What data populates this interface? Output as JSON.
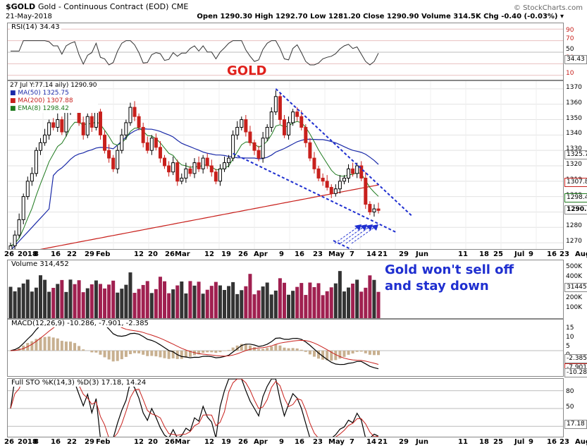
{
  "header": {
    "symbol": "$GOLD",
    "name": "Gold - Continuous Contract (EOD)",
    "exchange": "CME",
    "date": "21-May-2018",
    "copyright": "© StockCharts.com",
    "ohlc": "Open 1290.30  High 1292.70  Low 1281.20  Close 1290.90  Volume 314.5K  Chg -0.40 (-0.03%) ▾"
  },
  "title": "GOLD",
  "annotation": [
    "Gold won't sell off",
    "and stay down"
  ],
  "panels": {
    "rsi": {
      "label": "RSI(14) 34.43",
      "levels": [
        "90",
        "70",
        "50",
        "30",
        "10"
      ],
      "current": "34.43"
    },
    "price": {
      "legend": [
        "27 Jul Y:77.14   aily) 1290.90",
        "MA(50) 1325.75",
        "MA(200) 1307.88",
        "EMA(8) 1298.42"
      ],
      "legend_colors": [
        "#000000",
        "#1a2aa8",
        "#c8201c",
        "#1e7a1e"
      ],
      "ticks": [
        "1370",
        "1360",
        "1350",
        "1340",
        "1330",
        "1320",
        "1310",
        "1300",
        "1290",
        "1280",
        "1270"
      ],
      "tags": [
        "1325.7",
        "1307.8",
        "1298.4",
        "1290.9"
      ]
    },
    "volume": {
      "label": "Volume 314,452",
      "ticks": [
        "500K",
        "400K",
        "300K",
        "200K",
        "100K"
      ],
      "tag": "314452"
    },
    "macd": {
      "label": "MACD(12,26,9) -10.286, -7.901, -2.385",
      "ticks": [
        "15",
        "10",
        "5",
        "0",
        "-5",
        "-10"
      ],
      "tags": [
        "-2.385",
        "-7.901",
        "-10.286"
      ]
    },
    "sto": {
      "label": "Full STO %K(14,3) %D(3) 17.18, 14.24",
      "ticks": [
        "80",
        "50",
        "20"
      ],
      "tag": "17.18"
    }
  },
  "xaxis": [
    "26",
    "2018",
    "8",
    "16",
    "22",
    "29",
    "Feb",
    "12",
    "20",
    "26",
    "Mar",
    "12",
    "19",
    "26",
    "Apr",
    "9",
    "16",
    "23",
    "May",
    "7",
    "14",
    "21",
    "29",
    "Jun",
    "11",
    "18",
    "25",
    "Jul",
    "9",
    "16",
    "23",
    "Aug"
  ],
  "colors": {
    "up": "#000000",
    "down": "#c8201c",
    "ma50": "#1a2aa8",
    "ma200": "#c8201c",
    "ema8": "#1e7a1e",
    "trend": "#1f2fd0",
    "vol_up": "#333333",
    "vol_down": "#a02050",
    "hist": "#c8b090"
  },
  "chart_data": {
    "type": "line",
    "title": "GOLD",
    "ylabel": "",
    "ylim": [
      1265,
      1375
    ],
    "trend_lines": [
      {
        "from": [
          "Apr 11",
          1370
        ],
        "to": [
          "Jun 1",
          1290
        ]
      },
      {
        "from": [
          "Mar 26",
          1328
        ],
        "to": [
          "May 25",
          1277
        ]
      }
    ],
    "closes": [
      1268,
      1275,
      1285,
      1300,
      1310,
      1315,
      1330,
      1335,
      1340,
      1348,
      1345,
      1350,
      1342,
      1355,
      1365,
      1360,
      1348,
      1340,
      1352,
      1345,
      1355,
      1340,
      1330,
      1325,
      1318,
      1330,
      1340,
      1348,
      1358,
      1352,
      1345,
      1335,
      1330,
      1338,
      1332,
      1325,
      1320,
      1316,
      1322,
      1310,
      1312,
      1318,
      1315,
      1322,
      1318,
      1325,
      1320,
      1316,
      1310,
      1318,
      1322,
      1325,
      1340,
      1345,
      1350,
      1342,
      1335,
      1330,
      1325,
      1338,
      1345,
      1355,
      1365,
      1350,
      1340,
      1348,
      1355,
      1352,
      1345,
      1335,
      1325,
      1318,
      1312,
      1310,
      1306,
      1302,
      1305,
      1310,
      1312,
      1318,
      1315,
      1320,
      1312,
      1295,
      1290,
      1292,
      1291
    ]
  }
}
